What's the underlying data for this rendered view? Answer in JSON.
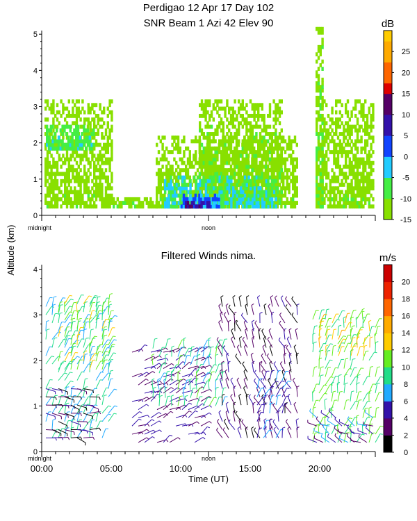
{
  "title_line1": "Perdigao   12 Apr 17 Day 102",
  "title_line2": "SNR Beam  1 Azi   42 Elev 90",
  "y_shared_label": "Altitude (km)",
  "chart_data": [
    {
      "type": "heatmap",
      "title": "SNR Beam  1 Azi   42 Elev 90",
      "ylabel": "Altitude (km)",
      "xlabel": "",
      "ylim": [
        0,
        5.1
      ],
      "xlim": [
        0,
        24
      ],
      "y_ticks": [
        "0",
        "1",
        "2",
        "3",
        "4",
        "5"
      ],
      "x_markers": [
        "midnight",
        "noon"
      ],
      "colorbar": {
        "unit": "dB",
        "ticks": [
          "25",
          "20",
          "15",
          "10",
          "5",
          "0",
          "-5",
          "-10",
          "-15"
        ],
        "levels": [
          -15,
          -12.5,
          -10,
          -7.5,
          -5,
          -2.5,
          0,
          2.5,
          5,
          7.5,
          10,
          12.5,
          15,
          17.5,
          20,
          22.5,
          25,
          27.5,
          30
        ],
        "colors": [
          "#88e000",
          "#88e000",
          "#44ee44",
          "#44ee44",
          "#22ccff",
          "#22ccff",
          "#1144ff",
          "#1144ff",
          "#3311aa",
          "#3311aa",
          "#550066",
          "#550066",
          "#dd0000",
          "#ff6600",
          "#ff6600",
          "#ffaa00",
          "#ffaa00",
          "#ffcc00"
        ]
      },
      "regions": [
        {
          "t0": 0.2,
          "t1": 5.0,
          "h0": 0.2,
          "h1": 3.2,
          "snr": -12
        },
        {
          "t0": 0.3,
          "t1": 3.8,
          "h0": 1.8,
          "h1": 2.5,
          "snr": -6
        },
        {
          "t0": 5.1,
          "t1": 8.2,
          "h0": 0.2,
          "h1": 0.5,
          "snr": -11
        },
        {
          "t0": 8.2,
          "t1": 18.4,
          "h0": 0.2,
          "h1": 2.2,
          "snr": -12
        },
        {
          "t0": 11.3,
          "t1": 17.2,
          "h0": 0.3,
          "h1": 3.2,
          "snr": -11
        },
        {
          "t0": 8.8,
          "t1": 16.8,
          "h0": 0.2,
          "h1": 1.0,
          "snr": -4
        },
        {
          "t0": 10.0,
          "t1": 12.8,
          "h0": 0.2,
          "h1": 0.6,
          "snr": 2
        },
        {
          "t0": 10.3,
          "t1": 12.0,
          "h0": 0.2,
          "h1": 0.4,
          "snr": 9
        },
        {
          "t0": 19.7,
          "t1": 23.9,
          "h0": 0.2,
          "h1": 3.2,
          "snr": -12
        },
        {
          "t0": 19.7,
          "t1": 20.2,
          "h0": 0.2,
          "h1": 5.1,
          "snr": -10
        }
      ]
    },
    {
      "type": "scatter",
      "title": "Filtered Winds nima.",
      "xlabel": "Time (UT)",
      "ylabel": "Altitude (km)",
      "ylim": [
        0,
        4.1
      ],
      "xlim": [
        0,
        24
      ],
      "x_ticks": [
        "00:00",
        "05:00",
        "10:00",
        "15:00",
        "20:00"
      ],
      "y_ticks": [
        "0",
        "1",
        "2",
        "3",
        "4"
      ],
      "x_markers": [
        "midnight",
        "noon"
      ],
      "colorbar": {
        "unit": "m/s",
        "ticks": [
          "20",
          "18",
          "16",
          "14",
          "12",
          "10",
          "8",
          "6",
          "4",
          "2",
          "0"
        ],
        "levels": [
          0,
          1,
          2,
          3,
          4,
          5,
          6,
          7,
          8,
          9,
          10,
          11,
          12,
          13,
          14,
          15,
          16,
          17,
          18,
          19,
          20,
          21,
          22
        ],
        "colors": [
          "#000000",
          "#000000",
          "#550066",
          "#550066",
          "#3311aa",
          "#3311aa",
          "#22aaff",
          "#22aaff",
          "#22dd88",
          "#22dd88",
          "#66ee22",
          "#66ee22",
          "#ffcc00",
          "#ffcc00",
          "#ffaa00",
          "#ffaa00",
          "#ff6600",
          "#ff6600",
          "#ee2200",
          "#ee2200",
          "#cc0000",
          "#cc0000"
        ]
      },
      "regions": [
        {
          "t0": 0.3,
          "t1": 5.2,
          "h0": 0.3,
          "h1": 3.3,
          "speed": 8,
          "dir": 20
        },
        {
          "t0": 1.2,
          "t1": 5.2,
          "h0": 1.8,
          "h1": 3.3,
          "speed": 11,
          "dir": 15
        },
        {
          "t0": 0.3,
          "t1": 3.5,
          "h0": 0.3,
          "h1": 1.4,
          "speed": 3,
          "dir": 100
        },
        {
          "t0": 6.5,
          "t1": 11.5,
          "h0": 0.2,
          "h1": 2.2,
          "speed": 4,
          "dir": 60
        },
        {
          "t0": 8.0,
          "t1": 13.0,
          "h0": 1.0,
          "h1": 2.4,
          "speed": 9,
          "dir": 10
        },
        {
          "t0": 13.0,
          "t1": 18.5,
          "h0": 0.3,
          "h1": 3.3,
          "speed": 3,
          "dir": 340
        },
        {
          "t0": 15.5,
          "t1": 17.5,
          "h0": 0.3,
          "h1": 1.6,
          "speed": 6,
          "dir": 20
        },
        {
          "t0": 19.5,
          "t1": 24.0,
          "h0": 0.2,
          "h1": 3.0,
          "speed": 10,
          "dir": 15
        },
        {
          "t0": 20.0,
          "t1": 23.8,
          "h0": 2.1,
          "h1": 2.9,
          "speed": 13,
          "dir": 10
        },
        {
          "t0": 19.8,
          "t1": 24.0,
          "h0": 0.2,
          "h1": 0.8,
          "speed": 5,
          "dir": 300
        }
      ]
    }
  ]
}
